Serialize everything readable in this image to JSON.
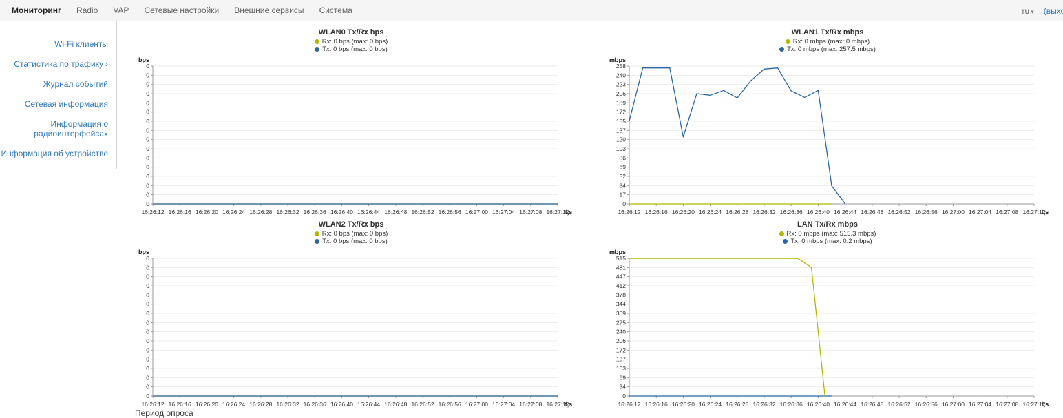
{
  "nav": {
    "tabs": [
      {
        "label": "Мониторинг",
        "active": true
      },
      {
        "label": "Radio",
        "active": false
      },
      {
        "label": "VAP",
        "active": false
      },
      {
        "label": "Сетевые настройки",
        "active": false
      },
      {
        "label": "Внешние сервисы",
        "active": false
      },
      {
        "label": "Система",
        "active": false
      }
    ],
    "lang": "ru",
    "logout": "(выход)"
  },
  "icons": {
    "caret_down": "▾",
    "chevron_right": "›"
  },
  "sidebar": {
    "items": [
      {
        "label": "Wi-Fi клиенты"
      },
      {
        "label": "Статистика по трафику",
        "chevron": true,
        "active": true
      },
      {
        "label": "Журнал событий"
      },
      {
        "label": "Сетевая информация"
      },
      {
        "label": "Информация о радиоинтерфейсах"
      },
      {
        "label": "Информация об устройстве"
      }
    ]
  },
  "footer": {
    "partial_text": "Период опроса"
  },
  "chart_data": [
    {
      "type": "line",
      "title": "WLAN0 Tx/Rx bps",
      "ylabel": "bps",
      "x_axis_label": "t,s",
      "legend": [
        {
          "label": "Rx: 0 bps (max: 0 bps)",
          "color": "#b4b800"
        },
        {
          "label": "Tx: 0 bps (max: 0 bps)",
          "color": "#2a66a5"
        }
      ],
      "x_ticks": [
        "16:26:12",
        "16:26:16",
        "16:26:20",
        "16:26:24",
        "16:26:28",
        "16:26:32",
        "16:26:36",
        "16:26:40",
        "16:26:44",
        "16:26:48",
        "16:26:52",
        "16:26:56",
        "16:27:00",
        "16:27:04",
        "16:27:08",
        "16:27:12"
      ],
      "x_range_s": [
        0,
        60
      ],
      "y_ticks": [
        "0",
        "0",
        "0",
        "0",
        "0",
        "0",
        "0",
        "0",
        "0",
        "0",
        "0",
        "0",
        "0",
        "0",
        "0",
        "0"
      ],
      "y_max": 1,
      "grid": true,
      "legend_position": "top",
      "series": [
        {
          "name": "Rx",
          "color": "#b4b800",
          "points": [
            [
              0,
              0
            ],
            [
              60,
              0
            ]
          ]
        },
        {
          "name": "Tx",
          "color": "#2a66a5",
          "points": [
            [
              0,
              0
            ],
            [
              60,
              0
            ]
          ]
        }
      ]
    },
    {
      "type": "line",
      "title": "WLAN1 Tx/Rx mbps",
      "ylabel": "mbps",
      "x_axis_label": "t,s",
      "legend": [
        {
          "label": "Rx: 0 mbps (max: 0 mbps)",
          "color": "#b4b800"
        },
        {
          "label": "Tx: 0 mbps (max: 257.5 mbps)",
          "color": "#2a66a5"
        }
      ],
      "x_ticks": [
        "16:26:12",
        "16:26:16",
        "16:26:20",
        "16:26:24",
        "16:26:28",
        "16:26:32",
        "16:26:36",
        "16:26:40",
        "16:26:44",
        "16:26:48",
        "16:26:52",
        "16:26:56",
        "16:27:00",
        "16:27:04",
        "16:27:08",
        "16:27:12"
      ],
      "x_range_s": [
        0,
        60
      ],
      "y_ticks": [
        "258",
        "240",
        "223",
        "206",
        "189",
        "172",
        "155",
        "137",
        "120",
        "103",
        "86",
        "69",
        "52",
        "34",
        "17",
        "0"
      ],
      "y_max": 257.5,
      "grid": true,
      "legend_position": "top",
      "series": [
        {
          "name": "Rx",
          "color": "#b4b800",
          "points": [
            [
              0,
              0
            ],
            [
              30,
              0
            ]
          ]
        },
        {
          "name": "Tx",
          "color": "#2a66a5",
          "points": [
            [
              0,
              155
            ],
            [
              2,
              254
            ],
            [
              4,
              254
            ],
            [
              6,
              254
            ],
            [
              8,
              125
            ],
            [
              10,
              206
            ],
            [
              12,
              203
            ],
            [
              14,
              212
            ],
            [
              16,
              198
            ],
            [
              18,
              230
            ],
            [
              20,
              252
            ],
            [
              22,
              254
            ],
            [
              24,
              211
            ],
            [
              26,
              199
            ],
            [
              28,
              212
            ],
            [
              30,
              34
            ],
            [
              32,
              0
            ]
          ]
        }
      ]
    },
    {
      "type": "line",
      "title": "WLAN2 Tx/Rx bps",
      "ylabel": "bps",
      "x_axis_label": "t,s",
      "legend": [
        {
          "label": "Rx: 0 bps (max: 0 bps)",
          "color": "#b4b800"
        },
        {
          "label": "Tx: 0 bps (max: 0 bps)",
          "color": "#2a66a5"
        }
      ],
      "x_ticks": [
        "16:26:12",
        "16:26:16",
        "16:26:20",
        "16:26:24",
        "16:26:28",
        "16:26:32",
        "16:26:36",
        "16:26:40",
        "16:26:44",
        "16:26:48",
        "16:26:52",
        "16:26:56",
        "16:27:00",
        "16:27:04",
        "16:27:08",
        "16:27:12"
      ],
      "x_range_s": [
        0,
        60
      ],
      "y_ticks": [
        "0",
        "0",
        "0",
        "0",
        "0",
        "0",
        "0",
        "0",
        "0",
        "0",
        "0",
        "0",
        "0",
        "0",
        "0",
        "0"
      ],
      "y_max": 1,
      "grid": true,
      "legend_position": "top",
      "series": [
        {
          "name": "Rx",
          "color": "#b4b800",
          "points": [
            [
              0,
              0
            ],
            [
              60,
              0
            ]
          ]
        },
        {
          "name": "Tx",
          "color": "#2a66a5",
          "points": [
            [
              0,
              0
            ],
            [
              60,
              0
            ]
          ]
        }
      ]
    },
    {
      "type": "line",
      "title": "LAN Tx/Rx mbps",
      "ylabel": "mbps",
      "x_axis_label": "t,s",
      "legend": [
        {
          "label": "Rx: 0 mbps (max: 515.3 mbps)",
          "color": "#b4b800"
        },
        {
          "label": "Tx: 0 mbps (max: 0.2 mbps)",
          "color": "#2a66a5"
        }
      ],
      "x_ticks": [
        "16:26:12",
        "16:26:16",
        "16:26:20",
        "16:26:24",
        "16:26:28",
        "16:26:32",
        "16:26:36",
        "16:26:40",
        "16:26:44",
        "16:26:48",
        "16:26:52",
        "16:26:56",
        "16:27:00",
        "16:27:04",
        "16:27:08",
        "16:27:12"
      ],
      "x_range_s": [
        0,
        60
      ],
      "y_ticks": [
        "515",
        "481",
        "447",
        "412",
        "378",
        "344",
        "309",
        "275",
        "240",
        "206",
        "172",
        "137",
        "103",
        "69",
        "34",
        "0"
      ],
      "y_max": 515.3,
      "grid": true,
      "legend_position": "top",
      "series": [
        {
          "name": "Tx",
          "color": "#2a66a5",
          "points": [
            [
              0,
              0
            ],
            [
              30,
              0
            ]
          ]
        },
        {
          "name": "Rx",
          "color": "#b4b800",
          "points": [
            [
              0,
              515
            ],
            [
              25,
              515
            ],
            [
              27,
              481
            ],
            [
              29,
              0
            ]
          ]
        }
      ]
    }
  ]
}
